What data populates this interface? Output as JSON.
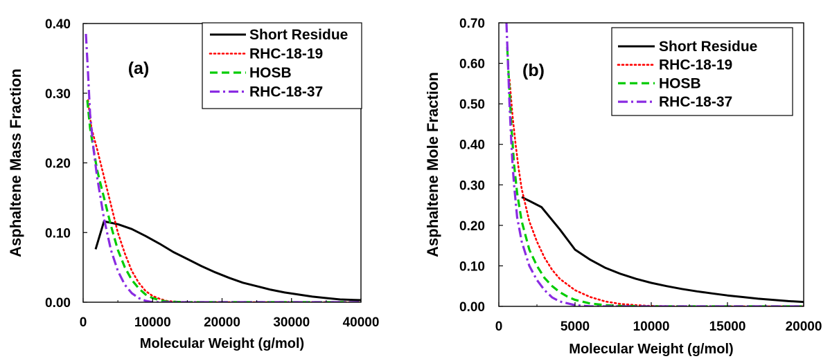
{
  "chart_data": [
    {
      "type": "line",
      "panel_label": "(a)",
      "xlabel": "Molecular Weight (g/mol)",
      "ylabel": "Asphaltene Mass Fraction",
      "xlim": [
        0,
        40000
      ],
      "ylim": [
        0,
        0.4
      ],
      "xticks": [
        0,
        10000,
        20000,
        30000,
        40000
      ],
      "xtick_labels": [
        "0",
        "10000",
        "20000",
        "30000",
        "40000"
      ],
      "yticks": [
        0,
        0.1,
        0.2,
        0.3,
        0.4
      ],
      "ytick_labels": [
        "0.00",
        "0.10",
        "0.20",
        "0.30",
        "0.40"
      ],
      "grid": false,
      "legend_position": "top-right",
      "series": [
        {
          "name": "Short Residue",
          "color": "#000000",
          "dash": "solid",
          "x": [
            1800,
            3000,
            5000,
            7000,
            9000,
            11000,
            13000,
            15000,
            17000,
            19000,
            21000,
            23000,
            25000,
            27000,
            29000,
            31000,
            33000,
            35000,
            37000,
            40000
          ],
          "y": [
            0.076,
            0.116,
            0.112,
            0.105,
            0.095,
            0.084,
            0.072,
            0.062,
            0.052,
            0.043,
            0.035,
            0.028,
            0.023,
            0.018,
            0.014,
            0.011,
            0.008,
            0.006,
            0.004,
            0.003
          ]
        },
        {
          "name": "RHC-18-19",
          "color": "#ff0000",
          "dash": "dotted",
          "x": [
            700,
            1200,
            2000,
            3000,
            4000,
            5000,
            6000,
            7000,
            8000,
            9000,
            10000,
            11000,
            12000,
            13000,
            15000,
            20000,
            30000,
            40000
          ],
          "y": [
            0.29,
            0.25,
            0.22,
            0.18,
            0.14,
            0.1,
            0.07,
            0.045,
            0.028,
            0.016,
            0.009,
            0.005,
            0.002,
            0.001,
            0.0,
            0.0,
            0.0,
            0.0
          ]
        },
        {
          "name": "HOSB",
          "color": "#00cc00",
          "dash": "dashed",
          "x": [
            600,
            1000,
            1500,
            2000,
            3000,
            4000,
            5000,
            6000,
            7000,
            8000,
            9000,
            10000,
            11000,
            12000,
            15000,
            20000,
            30000,
            40000
          ],
          "y": [
            0.29,
            0.25,
            0.22,
            0.19,
            0.15,
            0.11,
            0.075,
            0.05,
            0.032,
            0.02,
            0.011,
            0.006,
            0.003,
            0.001,
            0.0,
            0.0,
            0.0,
            0.0
          ]
        },
        {
          "name": "RHC-18-37",
          "color": "#8a2be2",
          "dash": "dashdot",
          "x": [
            400,
            700,
            1000,
            1500,
            2000,
            3000,
            4000,
            5000,
            6000,
            7000,
            8000,
            9000,
            10000,
            15000,
            20000,
            30000,
            40000
          ],
          "y": [
            0.385,
            0.33,
            0.27,
            0.22,
            0.18,
            0.12,
            0.075,
            0.045,
            0.025,
            0.013,
            0.006,
            0.002,
            0.0,
            0.0,
            0.0,
            0.0,
            0.0
          ]
        }
      ]
    },
    {
      "type": "line",
      "panel_label": "(b)",
      "xlabel": "Molecular Weight (g/mol)",
      "ylabel": "Asphaltene Mole Fraction",
      "xlim": [
        0,
        20000
      ],
      "ylim": [
        0,
        0.7
      ],
      "xticks": [
        0,
        5000,
        10000,
        15000,
        20000
      ],
      "xtick_labels": [
        "0",
        "5000",
        "10000",
        "15000",
        "20000"
      ],
      "yticks": [
        0,
        0.1,
        0.2,
        0.3,
        0.4,
        0.5,
        0.6,
        0.7
      ],
      "ytick_labels": [
        "0.00",
        "0.10",
        "0.20",
        "0.30",
        "0.40",
        "0.50",
        "0.60",
        "0.70"
      ],
      "grid": false,
      "legend_position": "top-right",
      "series": [
        {
          "name": "Short Residue",
          "color": "#000000",
          "dash": "solid",
          "x": [
            1500,
            2800,
            4000,
            5000,
            6000,
            7000,
            8000,
            9000,
            10000,
            11000,
            12000,
            13000,
            14000,
            15000,
            16000,
            17000,
            18000,
            19000,
            20000
          ],
          "y": [
            0.27,
            0.245,
            0.19,
            0.14,
            0.115,
            0.095,
            0.08,
            0.068,
            0.058,
            0.05,
            0.043,
            0.037,
            0.032,
            0.027,
            0.023,
            0.019,
            0.016,
            0.013,
            0.011
          ]
        },
        {
          "name": "RHC-18-19",
          "color": "#ff0000",
          "dash": "dotted",
          "x": [
            700,
            900,
            1100,
            1300,
            1500,
            2000,
            2500,
            3000,
            3500,
            4000,
            5000,
            6000,
            7000,
            8000,
            9000,
            10000,
            12000,
            15000,
            20000
          ],
          "y": [
            0.56,
            0.47,
            0.4,
            0.34,
            0.29,
            0.21,
            0.16,
            0.12,
            0.09,
            0.068,
            0.04,
            0.023,
            0.012,
            0.006,
            0.003,
            0.001,
            0.0,
            0.0,
            0.0
          ]
        },
        {
          "name": "HOSB",
          "color": "#00cc00",
          "dash": "dashed",
          "x": [
            550,
            700,
            850,
            1000,
            1200,
            1500,
            2000,
            2500,
            3000,
            3500,
            4000,
            4500,
            5000,
            6000,
            7000,
            8000,
            10000,
            15000,
            20000
          ],
          "y": [
            0.64,
            0.53,
            0.43,
            0.35,
            0.28,
            0.21,
            0.14,
            0.1,
            0.07,
            0.05,
            0.035,
            0.024,
            0.016,
            0.007,
            0.003,
            0.001,
            0.0,
            0.0,
            0.0
          ]
        },
        {
          "name": "RHC-18-37",
          "color": "#8a2be2",
          "dash": "dashdot",
          "x": [
            500,
            600,
            700,
            800,
            900,
            1000,
            1200,
            1500,
            2000,
            2500,
            3000,
            3500,
            4000,
            5000,
            6000,
            8000,
            10000,
            15000,
            20000
          ],
          "y": [
            0.7,
            0.6,
            0.5,
            0.42,
            0.35,
            0.3,
            0.22,
            0.16,
            0.1,
            0.065,
            0.04,
            0.022,
            0.012,
            0.003,
            0.0,
            0.0,
            0.0,
            0.0,
            0.0
          ]
        }
      ]
    }
  ]
}
